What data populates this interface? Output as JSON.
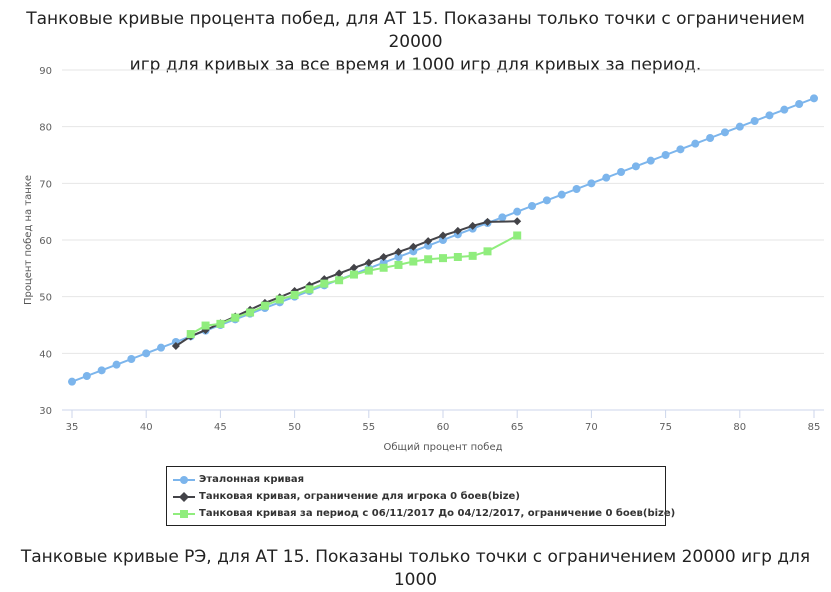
{
  "title_line1": "Танковые кривые процента побед, для АТ 15. Показаны только точки с ограничением 20000",
  "title_line2": "игр для кривых за все время и 1000 игр для кривых за период.",
  "next_title_line1": "Танковые кривые РЭ, для АТ 15. Показаны только точки с ограничением 20000 игр для",
  "next_title_line2": "1000",
  "chart_data": {
    "type": "line",
    "xlabel": "Общий процент побед",
    "ylabel": "Процент побед на танке",
    "xlim": [
      35,
      85
    ],
    "ylim": [
      30,
      90
    ],
    "xticks": [
      35,
      40,
      45,
      50,
      55,
      60,
      65,
      70,
      75,
      80,
      85
    ],
    "yticks": [
      30,
      40,
      50,
      60,
      70,
      80,
      90
    ],
    "grid": "horizontal",
    "legend_position": "bottom",
    "series": [
      {
        "name": "Эталонная кривая",
        "color": "#7cb5ec",
        "marker": "circle",
        "x": [
          35,
          36,
          37,
          38,
          39,
          40,
          41,
          42,
          43,
          44,
          45,
          46,
          47,
          48,
          49,
          50,
          51,
          52,
          53,
          54,
          55,
          56,
          57,
          58,
          59,
          60,
          61,
          62,
          63,
          64,
          65,
          66,
          67,
          68,
          69,
          70,
          71,
          72,
          73,
          74,
          75,
          76,
          77,
          78,
          79,
          80,
          81,
          82,
          83,
          84,
          85
        ],
        "y": [
          35,
          36,
          37,
          38,
          39,
          40,
          41,
          42,
          43,
          44,
          45,
          46,
          47,
          48,
          49,
          50,
          51,
          52,
          53,
          54,
          55,
          56,
          57,
          58,
          59,
          60,
          61,
          62,
          63,
          64,
          65,
          66,
          67,
          68,
          69,
          70,
          71,
          72,
          73,
          74,
          75,
          76,
          77,
          78,
          79,
          80,
          81,
          82,
          83,
          84,
          85
        ]
      },
      {
        "name": "Танковая кривая, ограничение для игрока 0 боев(bize)",
        "color": "#434348",
        "marker": "diamond",
        "x": [
          42,
          43,
          44,
          45,
          46,
          47,
          48,
          49,
          50,
          51,
          52,
          53,
          54,
          55,
          56,
          57,
          58,
          59,
          60,
          61,
          62,
          63,
          65
        ],
        "y": [
          41.3,
          43.0,
          44.1,
          45.3,
          46.5,
          47.7,
          48.9,
          49.9,
          51.0,
          52.0,
          53.1,
          54.1,
          55.1,
          56.0,
          57.0,
          57.9,
          58.8,
          59.8,
          60.8,
          61.6,
          62.5,
          63.2,
          63.3
        ]
      },
      {
        "name": "Танковая кривая за период с 06/11/2017 До 04/12/2017, ограничение 0 боев(bize)",
        "color": "#90ed7d",
        "marker": "square",
        "x": [
          43,
          44,
          45,
          46,
          47,
          48,
          49,
          50,
          51,
          52,
          53,
          54,
          55,
          56,
          57,
          58,
          59,
          60,
          61,
          62,
          63,
          65
        ],
        "y": [
          43.4,
          44.9,
          45.2,
          46.3,
          47.2,
          48.4,
          49.5,
          50.3,
          51.3,
          52.3,
          52.9,
          53.9,
          54.6,
          55.1,
          55.6,
          56.2,
          56.6,
          56.8,
          57.0,
          57.2,
          58.0,
          60.8
        ]
      }
    ]
  }
}
